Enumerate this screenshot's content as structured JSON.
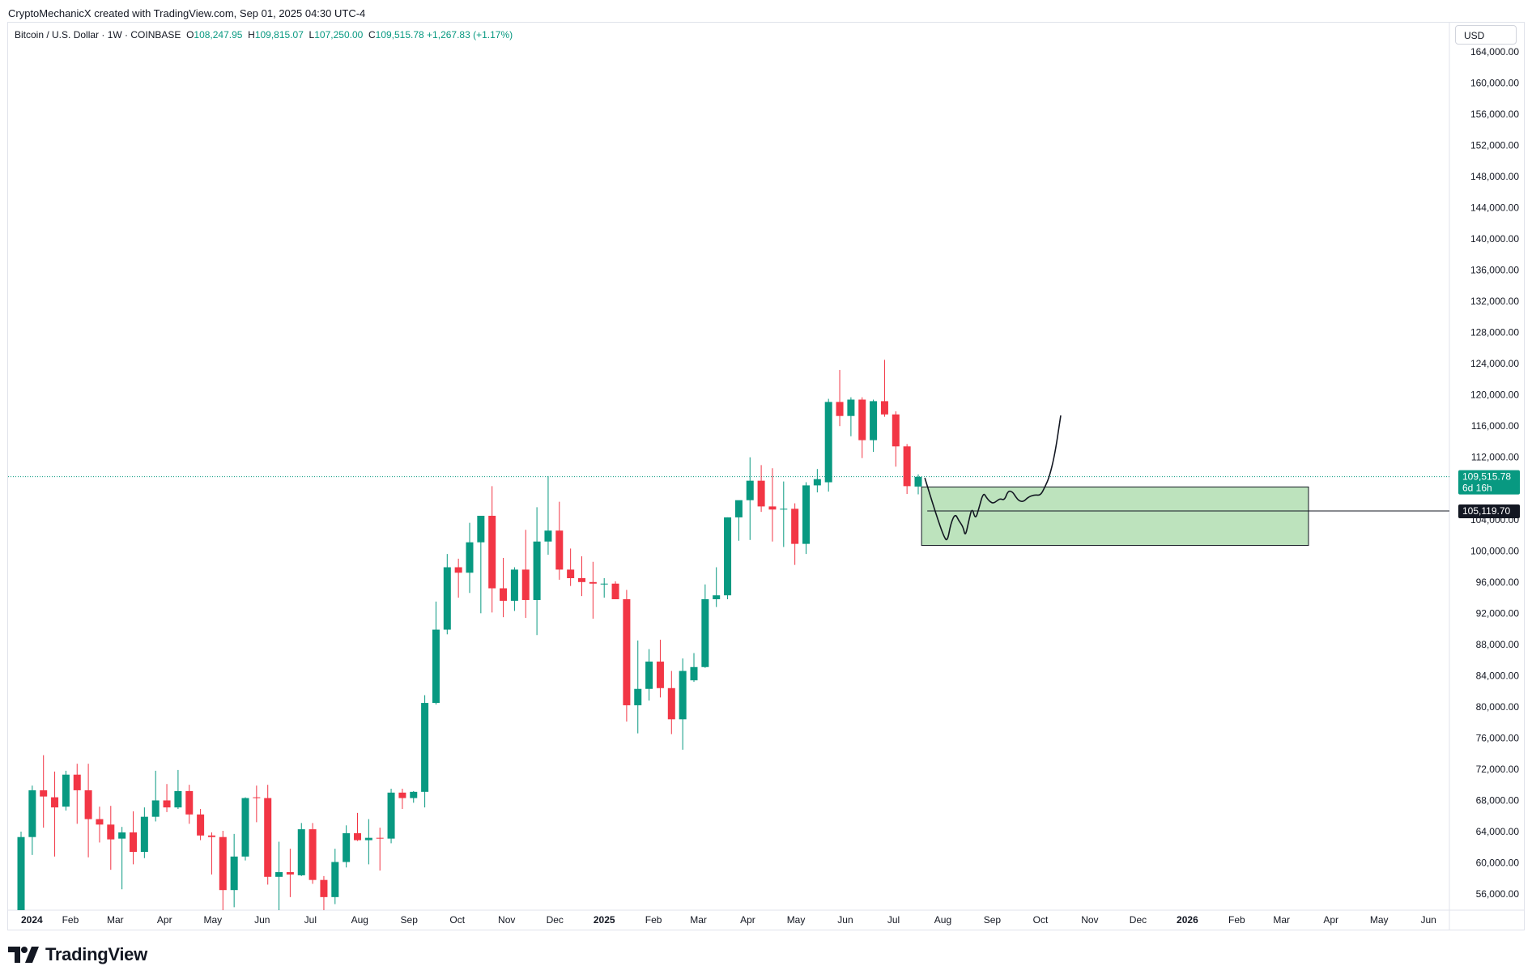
{
  "header": {
    "attribution": "CryptoMechanicX created with TradingView.com, Sep 01, 2025 04:30 UTC-4"
  },
  "symbol_line": {
    "name": "Bitcoin / U.S. Dollar · 1W · COINBASE",
    "o_label": "O",
    "o_value": "108,247.95",
    "h_label": "H",
    "h_value": "109,815.07",
    "l_label": "L",
    "l_value": "107,250.00",
    "c_label": "C",
    "c_value": "109,515.78",
    "change": "+1,267.83 (+1.17%)"
  },
  "currency_button": "USD",
  "price_tag": {
    "price": "109,515.78",
    "countdown": "6d 16h"
  },
  "level_tag": {
    "price": "105,119.70"
  },
  "footer": {
    "brand": "TradingView"
  },
  "colors": {
    "up": "#089981",
    "down": "#f23645",
    "zone_fill": "#bde3bd",
    "zone_stroke": "#131722",
    "grid_text": "#131722"
  },
  "chart_data": {
    "type": "candlestick",
    "interval": "1W",
    "ylim": [
      52000,
      166000
    ],
    "y_ticks": [
      "164,000.00",
      "160,000.00",
      "156,000.00",
      "152,000.00",
      "148,000.00",
      "144,000.00",
      "140,000.00",
      "136,000.00",
      "132,000.00",
      "128,000.00",
      "124,000.00",
      "120,000.00",
      "116,000.00",
      "112,000.00",
      "108,000.00",
      "104,000.00",
      "100,000.00",
      "96,000.00",
      "92,000.00",
      "88,000.00",
      "84,000.00",
      "80,000.00",
      "76,000.00",
      "72,000.00",
      "68,000.00",
      "64,000.00",
      "60,000.00",
      "56,000.00"
    ],
    "x_ticks": [
      {
        "label": "2024",
        "week": 0,
        "bold": true
      },
      {
        "label": "Feb",
        "week": 4.4
      },
      {
        "label": "Mar",
        "week": 8.4
      },
      {
        "label": "Apr",
        "week": 12.8
      },
      {
        "label": "May",
        "week": 17.1
      },
      {
        "label": "Jun",
        "week": 21.5
      },
      {
        "label": "Jul",
        "week": 25.8
      },
      {
        "label": "Aug",
        "week": 30.2
      },
      {
        "label": "Sep",
        "week": 34.6
      },
      {
        "label": "Oct",
        "week": 38.9
      },
      {
        "label": "Nov",
        "week": 43.3
      },
      {
        "label": "Dec",
        "week": 47.6
      },
      {
        "label": "2025",
        "week": 52,
        "bold": true
      },
      {
        "label": "Feb",
        "week": 56.4
      },
      {
        "label": "Mar",
        "week": 60.4
      },
      {
        "label": "Apr",
        "week": 64.8
      },
      {
        "label": "May",
        "week": 69.1
      },
      {
        "label": "Jun",
        "week": 73.5
      },
      {
        "label": "Jul",
        "week": 77.8
      },
      {
        "label": "Aug",
        "week": 82.2
      },
      {
        "label": "Sep",
        "week": 86.6
      },
      {
        "label": "Oct",
        "week": 90.9
      },
      {
        "label": "Nov",
        "week": 95.3
      },
      {
        "label": "Dec",
        "week": 99.6
      },
      {
        "label": "2026",
        "week": 104,
        "bold": true
      },
      {
        "label": "Feb",
        "week": 108.4
      },
      {
        "label": "Mar",
        "week": 112.4
      },
      {
        "label": "Apr",
        "week": 116.8
      },
      {
        "label": "May",
        "week": 121.1
      },
      {
        "label": "Jun",
        "week": 125.5
      }
    ],
    "candles": [
      {
        "o": 52500,
        "h": 64000,
        "l": 52500,
        "c": 63300
      },
      {
        "o": 63300,
        "h": 69900,
        "l": 61000,
        "c": 69300
      },
      {
        "o": 69300,
        "h": 73800,
        "l": 64500,
        "c": 68500
      },
      {
        "o": 68400,
        "h": 71700,
        "l": 60800,
        "c": 67100
      },
      {
        "o": 67200,
        "h": 71800,
        "l": 66700,
        "c": 71300
      },
      {
        "o": 71300,
        "h": 72700,
        "l": 65000,
        "c": 69300
      },
      {
        "o": 69300,
        "h": 72700,
        "l": 60700,
        "c": 65600
      },
      {
        "o": 65600,
        "h": 67200,
        "l": 62600,
        "c": 64900
      },
      {
        "o": 64900,
        "h": 67300,
        "l": 59100,
        "c": 63000
      },
      {
        "o": 63100,
        "h": 64600,
        "l": 56600,
        "c": 63900
      },
      {
        "o": 63900,
        "h": 66600,
        "l": 59800,
        "c": 61400
      },
      {
        "o": 61400,
        "h": 67100,
        "l": 60600,
        "c": 65900
      },
      {
        "o": 65900,
        "h": 71800,
        "l": 65300,
        "c": 68000
      },
      {
        "o": 68000,
        "h": 70100,
        "l": 66500,
        "c": 67100
      },
      {
        "o": 67100,
        "h": 71900,
        "l": 66900,
        "c": 69200
      },
      {
        "o": 69200,
        "h": 70000,
        "l": 65000,
        "c": 66200
      },
      {
        "o": 66200,
        "h": 66900,
        "l": 62900,
        "c": 63500
      },
      {
        "o": 63500,
        "h": 63900,
        "l": 58500,
        "c": 63300
      },
      {
        "o": 63300,
        "h": 64100,
        "l": 53500,
        "c": 56500
      },
      {
        "o": 56500,
        "h": 63700,
        "l": 54300,
        "c": 60800
      },
      {
        "o": 60800,
        "h": 68400,
        "l": 60300,
        "c": 68300
      },
      {
        "o": 68400,
        "h": 69900,
        "l": 65200,
        "c": 68300
      },
      {
        "o": 68300,
        "h": 70000,
        "l": 57200,
        "c": 58200
      },
      {
        "o": 58200,
        "h": 62700,
        "l": 53900,
        "c": 58800
      },
      {
        "o": 58800,
        "h": 61800,
        "l": 55600,
        "c": 58500
      },
      {
        "o": 58400,
        "h": 65100,
        "l": 58300,
        "c": 64300
      },
      {
        "o": 64300,
        "h": 65100,
        "l": 57300,
        "c": 57800
      },
      {
        "o": 57800,
        "h": 58300,
        "l": 53600,
        "c": 55600
      },
      {
        "o": 55600,
        "h": 61800,
        "l": 54700,
        "c": 60100
      },
      {
        "o": 60100,
        "h": 64800,
        "l": 59400,
        "c": 63800
      },
      {
        "o": 63800,
        "h": 66400,
        "l": 62800,
        "c": 62900
      },
      {
        "o": 62900,
        "h": 65600,
        "l": 59800,
        "c": 63200
      },
      {
        "o": 63200,
        "h": 64500,
        "l": 59000,
        "c": 63100
      },
      {
        "o": 63100,
        "h": 69500,
        "l": 62500,
        "c": 69000
      },
      {
        "o": 69000,
        "h": 69500,
        "l": 66900,
        "c": 68300
      },
      {
        "o": 68300,
        "h": 69200,
        "l": 67700,
        "c": 69100
      },
      {
        "o": 69100,
        "h": 81500,
        "l": 67100,
        "c": 80500
      },
      {
        "o": 80500,
        "h": 93500,
        "l": 80300,
        "c": 89900
      },
      {
        "o": 89900,
        "h": 99600,
        "l": 89300,
        "c": 97900
      },
      {
        "o": 97900,
        "h": 99000,
        "l": 94000,
        "c": 97200
      },
      {
        "o": 97200,
        "h": 103600,
        "l": 94600,
        "c": 101100
      },
      {
        "o": 101100,
        "h": 104000,
        "l": 92000,
        "c": 104500
      },
      {
        "o": 104500,
        "h": 108300,
        "l": 92100,
        "c": 95200
      },
      {
        "o": 95200,
        "h": 99100,
        "l": 91500,
        "c": 93600
      },
      {
        "o": 93600,
        "h": 97900,
        "l": 92300,
        "c": 97600
      },
      {
        "o": 97600,
        "h": 102700,
        "l": 91400,
        "c": 93700
      },
      {
        "o": 93700,
        "h": 105600,
        "l": 89200,
        "c": 101200
      },
      {
        "o": 101200,
        "h": 109600,
        "l": 99500,
        "c": 102600
      },
      {
        "o": 102600,
        "h": 106300,
        "l": 96300,
        "c": 97600
      },
      {
        "o": 97600,
        "h": 100300,
        "l": 95500,
        "c": 96500
      },
      {
        "o": 96500,
        "h": 99300,
        "l": 94200,
        "c": 96000
      },
      {
        "o": 96000,
        "h": 98600,
        "l": 91300,
        "c": 95800
      },
      {
        "o": 95800,
        "h": 96500,
        "l": 94000,
        "c": 95800
      },
      {
        "o": 95800,
        "h": 96100,
        "l": 94100,
        "c": 93800
      },
      {
        "o": 93800,
        "h": 95000,
        "l": 78100,
        "c": 80200
      },
      {
        "o": 80200,
        "h": 88500,
        "l": 76600,
        "c": 82300
      },
      {
        "o": 82300,
        "h": 87400,
        "l": 80800,
        "c": 85800
      },
      {
        "o": 85800,
        "h": 88600,
        "l": 81200,
        "c": 82400
      },
      {
        "o": 82400,
        "h": 84600,
        "l": 76500,
        "c": 78400
      },
      {
        "o": 78400,
        "h": 86200,
        "l": 74500,
        "c": 84600
      },
      {
        "o": 83400,
        "h": 86900,
        "l": 83200,
        "c": 85100
      },
      {
        "o": 85100,
        "h": 95700,
        "l": 85000,
        "c": 93800
      },
      {
        "o": 93800,
        "h": 97900,
        "l": 92800,
        "c": 94300
      },
      {
        "o": 94300,
        "h": 104300,
        "l": 93800,
        "c": 104300
      },
      {
        "o": 104300,
        "h": 105900,
        "l": 101300,
        "c": 106500
      },
      {
        "o": 106500,
        "h": 112000,
        "l": 101400,
        "c": 109000
      },
      {
        "o": 109000,
        "h": 111000,
        "l": 105000,
        "c": 105700
      },
      {
        "o": 105700,
        "h": 110600,
        "l": 101200,
        "c": 105300
      },
      {
        "o": 105400,
        "h": 108900,
        "l": 100500,
        "c": 105400
      },
      {
        "o": 105400,
        "h": 106100,
        "l": 98200,
        "c": 100900
      },
      {
        "o": 100900,
        "h": 108800,
        "l": 99600,
        "c": 108400
      },
      {
        "o": 108400,
        "h": 110500,
        "l": 107500,
        "c": 109200
      },
      {
        "o": 108800,
        "h": 119500,
        "l": 107600,
        "c": 119100
      },
      {
        "o": 119100,
        "h": 123200,
        "l": 116000,
        "c": 117300
      },
      {
        "o": 117300,
        "h": 119700,
        "l": 114700,
        "c": 119400
      },
      {
        "o": 119400,
        "h": 119700,
        "l": 111900,
        "c": 114200
      },
      {
        "o": 114200,
        "h": 119400,
        "l": 112700,
        "c": 119200
      },
      {
        "o": 119200,
        "h": 124500,
        "l": 117200,
        "c": 117500
      },
      {
        "o": 117500,
        "h": 117900,
        "l": 110800,
        "c": 113400
      },
      {
        "o": 113400,
        "h": 113700,
        "l": 107300,
        "c": 108300
      },
      {
        "o": 108250,
        "h": 109800,
        "l": 107250,
        "c": 109500
      }
    ],
    "last_price": 109515.78,
    "horizontal_level": 105119.7,
    "zone": {
      "y_top": 108200,
      "y_bottom": 100700,
      "x_start_week": 80.3,
      "x_end_week": 114.8
    },
    "projection_path": [
      [
        80.6,
        109300
      ],
      [
        81.2,
        106500
      ],
      [
        81.8,
        103800
      ],
      [
        82.3,
        101800
      ],
      [
        82.6,
        101200
      ],
      [
        82.9,
        103500
      ],
      [
        83.3,
        104800
      ],
      [
        83.6,
        103900
      ],
      [
        84.0,
        103100
      ],
      [
        84.2,
        101800
      ],
      [
        84.5,
        103800
      ],
      [
        84.8,
        105600
      ],
      [
        85.1,
        104000
      ],
      [
        85.4,
        105400
      ],
      [
        85.8,
        107500
      ],
      [
        86.1,
        106800
      ],
      [
        86.4,
        106300
      ],
      [
        86.7,
        106100
      ],
      [
        87.0,
        106400
      ],
      [
        87.3,
        106700
      ],
      [
        87.7,
        106500
      ],
      [
        88.0,
        107700
      ],
      [
        88.4,
        107600
      ],
      [
        88.7,
        106900
      ],
      [
        89.0,
        106400
      ],
      [
        89.4,
        106300
      ],
      [
        89.8,
        106900
      ],
      [
        90.4,
        107200
      ],
      [
        90.9,
        107100
      ],
      [
        91.3,
        108200
      ],
      [
        91.7,
        109500
      ],
      [
        92.2,
        112500
      ],
      [
        92.7,
        117300
      ]
    ]
  }
}
